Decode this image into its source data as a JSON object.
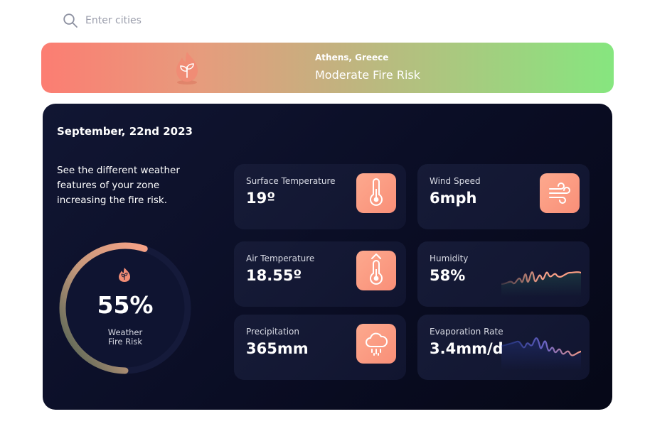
{
  "search": {
    "placeholder": "Enter cities"
  },
  "banner": {
    "location": "Athens, Greece",
    "risk_label": "Moderate Fire Risk"
  },
  "card": {
    "date": "September, 22nd 2023",
    "intro": "See the different weather features of your zone increasing the fire risk.",
    "gauge": {
      "value": 0.55,
      "value_text": "55%",
      "label_line1": "Weather",
      "label_line2": "Fire Risk"
    },
    "metrics": [
      {
        "label": "Surface Temperature",
        "value": "19º",
        "icon": "thermometer-icon"
      },
      {
        "label": "Wind Speed",
        "value": "6mph",
        "icon": "wind-icon"
      },
      {
        "label": "Air Temperature",
        "value": "18.55º",
        "icon": "thermometer-up-icon"
      },
      {
        "label": "Humidity",
        "value": "58%",
        "icon": "humidity-wave-icon"
      },
      {
        "label": "Precipitation",
        "value": "365mm",
        "icon": "rain-cloud-icon"
      },
      {
        "label": "Evaporation Rate",
        "value": "3.4mm/d",
        "icon": "evaporation-wave-icon"
      }
    ]
  },
  "colors": {
    "accent": "#fb9179",
    "card_bg": "#0b0f28",
    "banner_start": "#fc7d72",
    "banner_end": "#86e67f"
  }
}
